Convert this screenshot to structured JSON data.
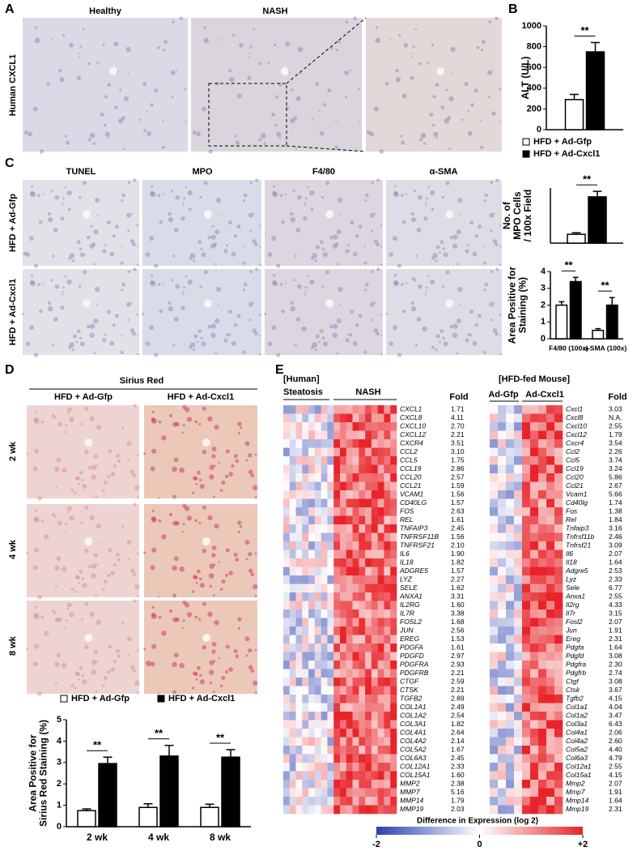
{
  "panels": {
    "a": {
      "label": "A",
      "columns": [
        "Healthy",
        "NASH"
      ],
      "row_label": "Human CXCL1"
    },
    "b": {
      "label": "B"
    },
    "c": {
      "label": "C",
      "columns": [
        "TUNEL",
        "MPO",
        "F4/80",
        "α-SMA"
      ],
      "rows": [
        "HFD + Ad-Gfp",
        "HFD + Ad-Cxcl1"
      ]
    },
    "d": {
      "label": "D",
      "title": "Sirius Red",
      "columns": [
        "HFD + Ad-Gfp",
        "HFD + Ad-Cxcl1"
      ],
      "rows": [
        "2 wk",
        "4 wk",
        "8 wk"
      ]
    },
    "e": {
      "label": "E",
      "human": {
        "title": "[Human]",
        "groups": [
          "Steatosis",
          "NASH"
        ],
        "fold_header": "Fold",
        "genes": [
          "CXCL1",
          "CXCL8",
          "CXCL10",
          "CXCL12",
          "CXCR4",
          "CCL2",
          "CCL5",
          "CCL19",
          "CCL20",
          "CCL21",
          "VCAM1",
          "CD40LG",
          "FOS",
          "REL",
          "TNFAIP3",
          "TNFRSF11B",
          "TNFRSF21",
          "IL6",
          "IL18",
          "ADGRE5",
          "LYZ",
          "SELE",
          "ANXA1",
          "IL2RG",
          "IL7R",
          "FOSL2",
          "JUN",
          "EREG",
          "PDGFA",
          "PDGFD",
          "PDGFRA",
          "PDGFRB",
          "CTGF",
          "CTSK",
          "TGFB2",
          "COL1A1",
          "COL1A2",
          "COL3A1",
          "COL4A1",
          "COL4A2",
          "COL5A2",
          "COL6A3",
          "COL12A1",
          "COL15A1",
          "MMP2",
          "MMP7",
          "MMP14",
          "MMP19"
        ],
        "fold": [
          "1.71",
          "4.11",
          "2.70",
          "2.21",
          "3.51",
          "3.10",
          "1.75",
          "2.86",
          "2.57",
          "1.59",
          "1.56",
          "1.57",
          "2.63",
          "1.61",
          "2.45",
          "1.56",
          "2.10",
          "1.90",
          "1.82",
          "1.57",
          "2.27",
          "1.62",
          "3.31",
          "1.60",
          "3.38",
          "1.68",
          "2.56",
          "1.53",
          "1.61",
          "2.97",
          "2.93",
          "2.21",
          "2.59",
          "2.21",
          "2.89",
          "2.49",
          "2.54",
          "1.82",
          "2.64",
          "2.14",
          "1.67",
          "2.45",
          "2.33",
          "1.60",
          "2.38",
          "5.16",
          "1.79",
          "2.03"
        ]
      },
      "mouse": {
        "title": "[HFD-fed Mouse]",
        "groups": [
          "Ad-Gfp",
          "Ad-Cxcl1"
        ],
        "fold_header": "Fold",
        "genes": [
          "Cxcl1",
          "Cxcl8",
          "Cxcl10",
          "Cxcl12",
          "Cxcr4",
          "Ccl2",
          "Ccl5",
          "Ccl19",
          "Ccl20",
          "Ccl21",
          "Vcam1",
          "Cd40lg",
          "Fos",
          "Rel",
          "Tnfaip3",
          "Tnfrsf11b",
          "Tnfrsf21",
          "Il6",
          "Il18",
          "Adgre5",
          "Lyz",
          "Sele",
          "Anxa1",
          "Il2rg",
          "Il7r",
          "Fosl2",
          "Jun",
          "Ereg",
          "Pdgfa",
          "Pdgfd",
          "Pdgfra",
          "Pdgfrb",
          "Ctgf",
          "Ctsk",
          "Tgfb2",
          "Col1a1",
          "Col1a2",
          "Col3a1",
          "Col4a1",
          "Col4a2",
          "Col5a2",
          "Col6a3",
          "Col12a1",
          "Col15a1",
          "Mmp2",
          "Mmp7",
          "Mmp14",
          "Mmp19"
        ],
        "fold": [
          "3.03",
          "N.A.",
          "2.55",
          "1.79",
          "3.54",
          "2.26",
          "3.74",
          "3.24",
          "5.86",
          "2.67",
          "5.66",
          "1.74",
          "1.38",
          "1.84",
          "3.16",
          "2.46",
          "3.09",
          "2.07",
          "1.64",
          "2.53",
          "2.33",
          "6.77",
          "2.55",
          "4.33",
          "3.15",
          "2.07",
          "1.91",
          "2.31",
          "1.64",
          "3.08",
          "2.30",
          "2.74",
          "3.08",
          "3.67",
          "4.15",
          "4.04",
          "3.47",
          "6.43",
          "2.06",
          "2.60",
          "4.40",
          "4.79",
          "2.55",
          "4.15",
          "2.07",
          "1.91",
          "1.64",
          "2.31"
        ]
      },
      "colorbar": {
        "title": "Difference in Expression (log 2)",
        "lim": [
          -2,
          2
        ],
        "ticks": [
          -2,
          0,
          {
            "value": 2,
            "label": "+2"
          }
        ]
      }
    }
  },
  "chart_data": [
    {
      "type": "bar",
      "ylabel": [
        "ALT (U/L)"
      ],
      "categories": [
        null
      ],
      "ylim": [
        0,
        1000
      ],
      "yticks": [
        0,
        200,
        400,
        600,
        800,
        1000
      ],
      "series": [
        {
          "name": "HFD + Ad-Gfp",
          "color": "#ffffff",
          "values": [
            290
          ],
          "errors": [
            50
          ]
        },
        {
          "name": "HFD + Ad-Cxcl1",
          "color": "#000000",
          "values": [
            750
          ],
          "errors": [
            90
          ]
        }
      ],
      "significance": [
        "**"
      ],
      "legend": "below"
    },
    {
      "type": "bar",
      "ylabel": [
        "No. of",
        "MPO Cells",
        "/ 100x Field"
      ],
      "categories": [
        null
      ],
      "ylim": [
        0,
        25
      ],
      "series": [
        {
          "color": "#ffffff",
          "values": [
            4
          ],
          "errors": [
            0.7
          ]
        },
        {
          "color": "#000000",
          "values": [
            21
          ],
          "errors": [
            2.5
          ]
        }
      ],
      "significance": [
        "**"
      ]
    },
    {
      "type": "bar",
      "ylabel": [
        "Area Positive for",
        "Staining (%)"
      ],
      "categories": [
        "F4/80 (100x)",
        "α-SMA (100x)"
      ],
      "ylim": [
        0,
        4
      ],
      "yticks": [
        0,
        1,
        2,
        3,
        4
      ],
      "series": [
        {
          "color": "#ffffff",
          "values": [
            2.0,
            0.5
          ],
          "errors": [
            0.2,
            0.1
          ]
        },
        {
          "color": "#000000",
          "values": [
            3.4,
            2.0
          ],
          "errors": [
            0.25,
            0.45
          ]
        }
      ],
      "significance": [
        "**",
        "**"
      ]
    },
    {
      "type": "bar",
      "ylabel": [
        "Area Positive for",
        "Sirius Red Staining (%)"
      ],
      "categories": [
        "2 wk",
        "4 wk",
        "8 wk"
      ],
      "ylim": [
        0,
        5
      ],
      "yticks": [
        0,
        1,
        2,
        3,
        4,
        5
      ],
      "series": [
        {
          "name": "HFD + Ad-Gfp",
          "color": "#ffffff",
          "values": [
            0.75,
            0.9,
            0.9
          ],
          "errors": [
            0.08,
            0.17,
            0.15
          ]
        },
        {
          "name": "HFD + Ad-Cxcl1",
          "color": "#000000",
          "values": [
            2.95,
            3.3,
            3.25
          ],
          "errors": [
            0.3,
            0.5,
            0.35
          ]
        }
      ],
      "significance": [
        "**",
        "**",
        "**"
      ],
      "legend": "above"
    }
  ]
}
